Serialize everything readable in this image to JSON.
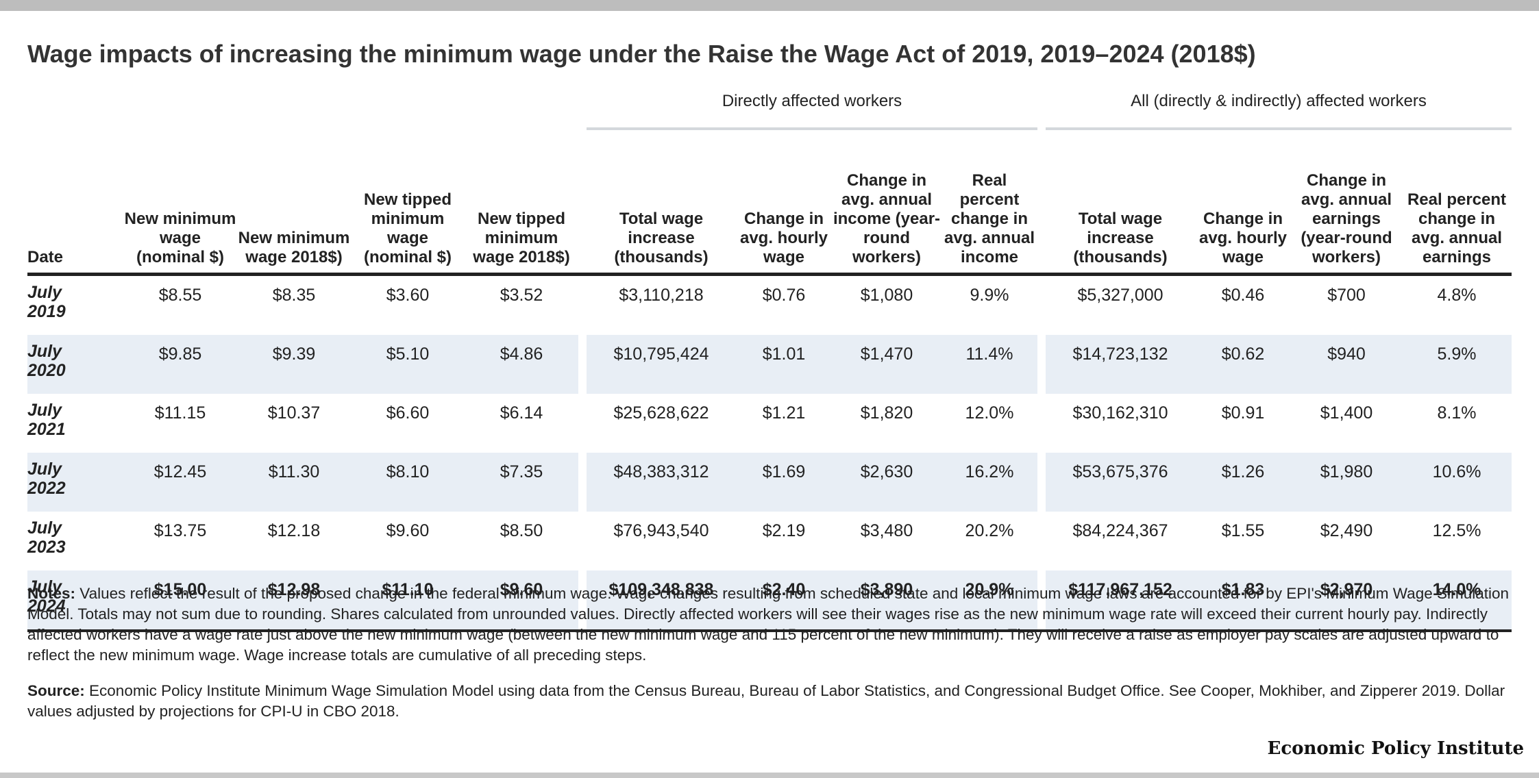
{
  "title": "Wage impacts of increasing the minimum wage under the Raise the Wage Act of 2019, 2019–2024 (2018$)",
  "groups": {
    "direct": "Directly affected workers",
    "all": "All (directly & indirectly) affected workers"
  },
  "columns": {
    "date": "Date",
    "nominal_min": "New minimum wage (nominal $)",
    "real_min": "New minimum wage 2018$)",
    "nominal_tipped": "New tipped minimum wage (nominal $)",
    "real_tipped": "New tipped minimum wage 2018$)",
    "direct_total": "Total wage increase (thousands)",
    "direct_hourly": "Change in avg. hourly wage",
    "direct_annual": "Change in avg. annual income (year-round workers)",
    "direct_pct": "Real percent change in avg. annual income",
    "all_total": "Total wage increase (thousands)",
    "all_hourly": "Change in avg. hourly wage",
    "all_annual": "Change in avg. annual earnings (year-round workers)",
    "all_pct": "Real percent change in avg. annual earnings"
  },
  "rows": [
    {
      "month": "July",
      "year": "2019",
      "nominal_min": "$8.55",
      "real_min": "$8.35",
      "nominal_tipped": "$3.60",
      "real_tipped": "$3.52",
      "direct_total": "$3,110,218",
      "direct_hourly": "$0.76",
      "direct_annual": "$1,080",
      "direct_pct": "9.9%",
      "all_total": "$5,327,000",
      "all_hourly": "$0.46",
      "all_annual": "$700",
      "all_pct": "4.8%"
    },
    {
      "month": "July",
      "year": "2020",
      "nominal_min": "$9.85",
      "real_min": "$9.39",
      "nominal_tipped": "$5.10",
      "real_tipped": "$4.86",
      "direct_total": "$10,795,424",
      "direct_hourly": "$1.01",
      "direct_annual": "$1,470",
      "direct_pct": "11.4%",
      "all_total": "$14,723,132",
      "all_hourly": "$0.62",
      "all_annual": "$940",
      "all_pct": "5.9%"
    },
    {
      "month": "July",
      "year": "2021",
      "nominal_min": "$11.15",
      "real_min": "$10.37",
      "nominal_tipped": "$6.60",
      "real_tipped": "$6.14",
      "direct_total": "$25,628,622",
      "direct_hourly": "$1.21",
      "direct_annual": "$1,820",
      "direct_pct": "12.0%",
      "all_total": "$30,162,310",
      "all_hourly": "$0.91",
      "all_annual": "$1,400",
      "all_pct": "8.1%"
    },
    {
      "month": "July",
      "year": "2022",
      "nominal_min": "$12.45",
      "real_min": "$11.30",
      "nominal_tipped": "$8.10",
      "real_tipped": "$7.35",
      "direct_total": "$48,383,312",
      "direct_hourly": "$1.69",
      "direct_annual": "$2,630",
      "direct_pct": "16.2%",
      "all_total": "$53,675,376",
      "all_hourly": "$1.26",
      "all_annual": "$1,980",
      "all_pct": "10.6%"
    },
    {
      "month": "July",
      "year": "2023",
      "nominal_min": "$13.75",
      "real_min": "$12.18",
      "nominal_tipped": "$9.60",
      "real_tipped": "$8.50",
      "direct_total": "$76,943,540",
      "direct_hourly": "$2.19",
      "direct_annual": "$3,480",
      "direct_pct": "20.2%",
      "all_total": "$84,224,367",
      "all_hourly": "$1.55",
      "all_annual": "$2,490",
      "all_pct": "12.5%"
    },
    {
      "month": "July",
      "year": "2024",
      "nominal_min": "$15.00",
      "real_min": "$12.98",
      "nominal_tipped": "$11.10",
      "real_tipped": "$9.60",
      "direct_total": "$109,348,838",
      "direct_hourly": "$2.40",
      "direct_annual": "$3,890",
      "direct_pct": "20.9%",
      "all_total": "$117,967,152",
      "all_hourly": "$1.83",
      "all_annual": "$2,970",
      "all_pct": "14.0%"
    }
  ],
  "notes": {
    "label": "Notes:",
    "text": " Values reflect the result of the proposed change in the federal minimum wage. Wage changes resulting from scheduled state and local minimum wage laws are accounted for by EPI's Minimum Wage Simulation Model. Totals may not sum due to rounding. Shares calculated from unrounded values. Directly affected workers will see their wages rise as the new minimum wage rate will exceed their current hourly pay. Indirectly affected workers have a wage rate just above the new minimum wage (between the new minimum wage and 115 percent of the new minimum). They will receive a raise as employer pay scales are adjusted upward to reflect the new minimum wage. Wage increase totals are cumulative of all preceding steps."
  },
  "source": {
    "label": "Source:",
    "text": " Economic Policy Institute Minimum Wage Simulation Model using data from the Census Bureau, Bureau of Labor Statistics, and Congressional Budget Office. See Cooper, Mokhiber, and Zipperer 2019. Dollar values adjusted by projections for CPI-U in CBO 2018."
  },
  "brand": "Economic Policy Institute"
}
